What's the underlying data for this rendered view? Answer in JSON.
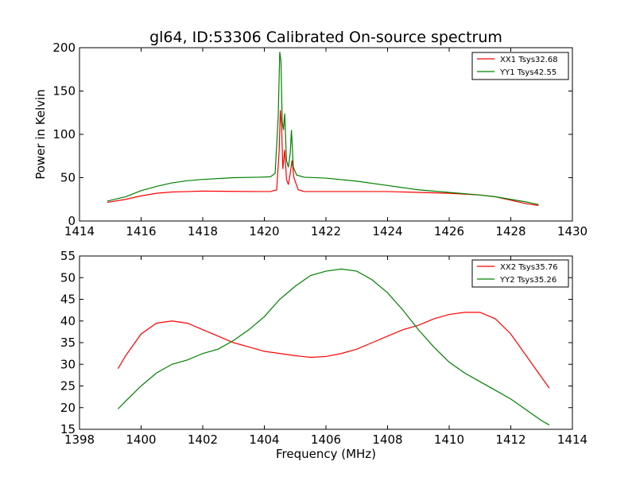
{
  "figure": {
    "title": "gl64, ID:53306 Calibrated On-source spectrum"
  },
  "chart_data": [
    {
      "type": "line",
      "title": "gl64, ID:53306 Calibrated On-source spectrum",
      "xlabel": "",
      "ylabel": "Power in Kelvin",
      "xlim": [
        1414,
        1430
      ],
      "ylim": [
        0,
        200
      ],
      "xticks": [
        "1414",
        "1416",
        "1418",
        "1420",
        "1422",
        "1424",
        "1426",
        "1428",
        "1430"
      ],
      "yticks": [
        "0",
        "50",
        "100",
        "150",
        "200"
      ],
      "grid": false,
      "legend_position": "top-right",
      "series": [
        {
          "name": "XX1 Tsys32.68",
          "color": "#ff0000",
          "points": [
            [
              1414.9,
              21.5
            ],
            [
              1415.5,
              25
            ],
            [
              1416,
              29
            ],
            [
              1416.5,
              32
            ],
            [
              1417,
              33.5
            ],
            [
              1417.5,
              34
            ],
            [
              1418,
              34.5
            ],
            [
              1419,
              34.2
            ],
            [
              1419.8,
              34
            ],
            [
              1420.2,
              34
            ],
            [
              1420.4,
              36
            ],
            [
              1420.48,
              80
            ],
            [
              1420.52,
              128
            ],
            [
              1420.56,
              110
            ],
            [
              1420.6,
              60
            ],
            [
              1420.66,
              82
            ],
            [
              1420.72,
              48
            ],
            [
              1420.78,
              42
            ],
            [
              1420.84,
              55
            ],
            [
              1420.9,
              70
            ],
            [
              1420.96,
              50
            ],
            [
              1421.1,
              36
            ],
            [
              1421.3,
              34
            ],
            [
              1422,
              34
            ],
            [
              1423,
              34
            ],
            [
              1424,
              34
            ],
            [
              1425,
              33
            ],
            [
              1426,
              32
            ],
            [
              1427,
              30
            ],
            [
              1427.5,
              28
            ],
            [
              1428,
              24
            ],
            [
              1428.5,
              20
            ],
            [
              1428.9,
              18
            ]
          ]
        },
        {
          "name": "YY1 Tsys42.55",
          "color": "#008000",
          "points": [
            [
              1414.9,
              23
            ],
            [
              1415.5,
              28
            ],
            [
              1416,
              35
            ],
            [
              1416.5,
              40
            ],
            [
              1417,
              44
            ],
            [
              1417.5,
              46.5
            ],
            [
              1418,
              48
            ],
            [
              1419,
              50
            ],
            [
              1419.8,
              50.5
            ],
            [
              1420.2,
              51
            ],
            [
              1420.35,
              55
            ],
            [
              1420.45,
              120
            ],
            [
              1420.5,
              195
            ],
            [
              1420.54,
              185
            ],
            [
              1420.58,
              115
            ],
            [
              1420.62,
              105
            ],
            [
              1420.66,
              124
            ],
            [
              1420.72,
              70
            ],
            [
              1420.78,
              62
            ],
            [
              1420.84,
              78
            ],
            [
              1420.88,
              105
            ],
            [
              1420.94,
              62
            ],
            [
              1421.05,
              53
            ],
            [
              1421.3,
              50.5
            ],
            [
              1422,
              49.5
            ],
            [
              1423,
              46
            ],
            [
              1424,
              41
            ],
            [
              1425,
              36
            ],
            [
              1426,
              33
            ],
            [
              1427,
              30
            ],
            [
              1427.5,
              28
            ],
            [
              1428,
              25
            ],
            [
              1428.5,
              22
            ],
            [
              1428.9,
              19
            ]
          ]
        }
      ]
    },
    {
      "type": "line",
      "title": "",
      "xlabel": "Frequency (MHz)",
      "ylabel": "",
      "xlim": [
        1398,
        1414
      ],
      "ylim": [
        15,
        55
      ],
      "xticks": [
        "1398",
        "1400",
        "1402",
        "1404",
        "1406",
        "1408",
        "1410",
        "1412",
        "1414"
      ],
      "yticks": [
        "15",
        "20",
        "25",
        "30",
        "35",
        "40",
        "45",
        "50",
        "55"
      ],
      "grid": false,
      "legend_position": "top-right",
      "series": [
        {
          "name": "XX2 Tsys35.76",
          "color": "#ff0000",
          "points": [
            [
              1399.25,
              29
            ],
            [
              1399.5,
              32
            ],
            [
              1400,
              37
            ],
            [
              1400.5,
              39.5
            ],
            [
              1401,
              40
            ],
            [
              1401.5,
              39.5
            ],
            [
              1402,
              38
            ],
            [
              1402.5,
              36.5
            ],
            [
              1403,
              35
            ],
            [
              1403.5,
              34
            ],
            [
              1404,
              33
            ],
            [
              1404.5,
              32.5
            ],
            [
              1405,
              32
            ],
            [
              1405.5,
              31.6
            ],
            [
              1406,
              31.8
            ],
            [
              1406.5,
              32.5
            ],
            [
              1407,
              33.5
            ],
            [
              1407.5,
              35
            ],
            [
              1408,
              36.5
            ],
            [
              1408.5,
              38
            ],
            [
              1409,
              39
            ],
            [
              1409.5,
              40.5
            ],
            [
              1410,
              41.5
            ],
            [
              1410.5,
              42
            ],
            [
              1411,
              42
            ],
            [
              1411.5,
              40.5
            ],
            [
              1412,
              37
            ],
            [
              1412.5,
              32
            ],
            [
              1413,
              27
            ],
            [
              1413.25,
              24.5
            ]
          ]
        },
        {
          "name": "YY2 Tsys35.26",
          "color": "#008000",
          "points": [
            [
              1399.25,
              19.7
            ],
            [
              1399.5,
              21.5
            ],
            [
              1400,
              25
            ],
            [
              1400.5,
              28
            ],
            [
              1401,
              30
            ],
            [
              1401.5,
              31
            ],
            [
              1402,
              32.5
            ],
            [
              1402.5,
              33.5
            ],
            [
              1403,
              35.5
            ],
            [
              1403.5,
              38
            ],
            [
              1404,
              41
            ],
            [
              1404.5,
              45
            ],
            [
              1405,
              48
            ],
            [
              1405.5,
              50.5
            ],
            [
              1406,
              51.5
            ],
            [
              1406.5,
              52
            ],
            [
              1407,
              51.5
            ],
            [
              1407.5,
              49.5
            ],
            [
              1408,
              46.5
            ],
            [
              1408.5,
              42.5
            ],
            [
              1409,
              38
            ],
            [
              1409.5,
              34
            ],
            [
              1410,
              30.5
            ],
            [
              1410.5,
              28
            ],
            [
              1411,
              26
            ],
            [
              1411.5,
              24
            ],
            [
              1412,
              22
            ],
            [
              1412.5,
              19.5
            ],
            [
              1413,
              17
            ],
            [
              1413.25,
              16
            ]
          ]
        }
      ]
    }
  ]
}
